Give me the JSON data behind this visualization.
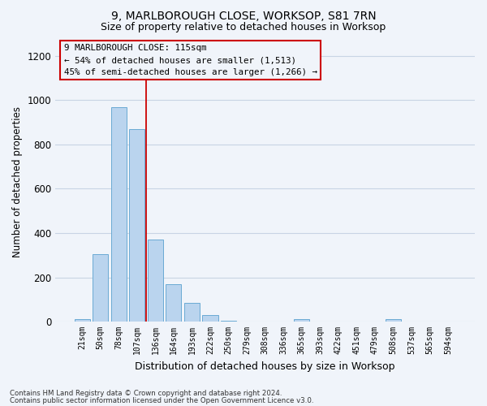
{
  "title": "9, MARLBOROUGH CLOSE, WORKSOP, S81 7RN",
  "subtitle": "Size of property relative to detached houses in Worksop",
  "xlabel": "Distribution of detached houses by size in Worksop",
  "ylabel": "Number of detached properties",
  "bar_color": "#bad4ee",
  "bar_edgecolor": "#6aaad4",
  "categories": [
    "21sqm",
    "50sqm",
    "78sqm",
    "107sqm",
    "136sqm",
    "164sqm",
    "193sqm",
    "222sqm",
    "250sqm",
    "279sqm",
    "308sqm",
    "336sqm",
    "365sqm",
    "393sqm",
    "422sqm",
    "451sqm",
    "479sqm",
    "508sqm",
    "537sqm",
    "565sqm",
    "594sqm"
  ],
  "values": [
    12,
    305,
    970,
    868,
    370,
    170,
    85,
    28,
    5,
    0,
    0,
    0,
    12,
    0,
    0,
    0,
    0,
    12,
    0,
    0,
    0
  ],
  "ylim": [
    0,
    1260
  ],
  "yticks": [
    0,
    200,
    400,
    600,
    800,
    1000,
    1200
  ],
  "vline_x": 3.5,
  "vline_color": "#cc0000",
  "annotation_line1": "9 MARLBOROUGH CLOSE: 115sqm",
  "annotation_line2": "← 54% of detached houses are smaller (1,513)",
  "annotation_line3": "45% of semi-detached houses are larger (1,266) →",
  "footer_line1": "Contains HM Land Registry data © Crown copyright and database right 2024.",
  "footer_line2": "Contains public sector information licensed under the Open Government Licence v3.0.",
  "background_color": "#f0f4fa",
  "grid_color": "#c8d4e4",
  "title_fontsize": 10,
  "subtitle_fontsize": 9
}
